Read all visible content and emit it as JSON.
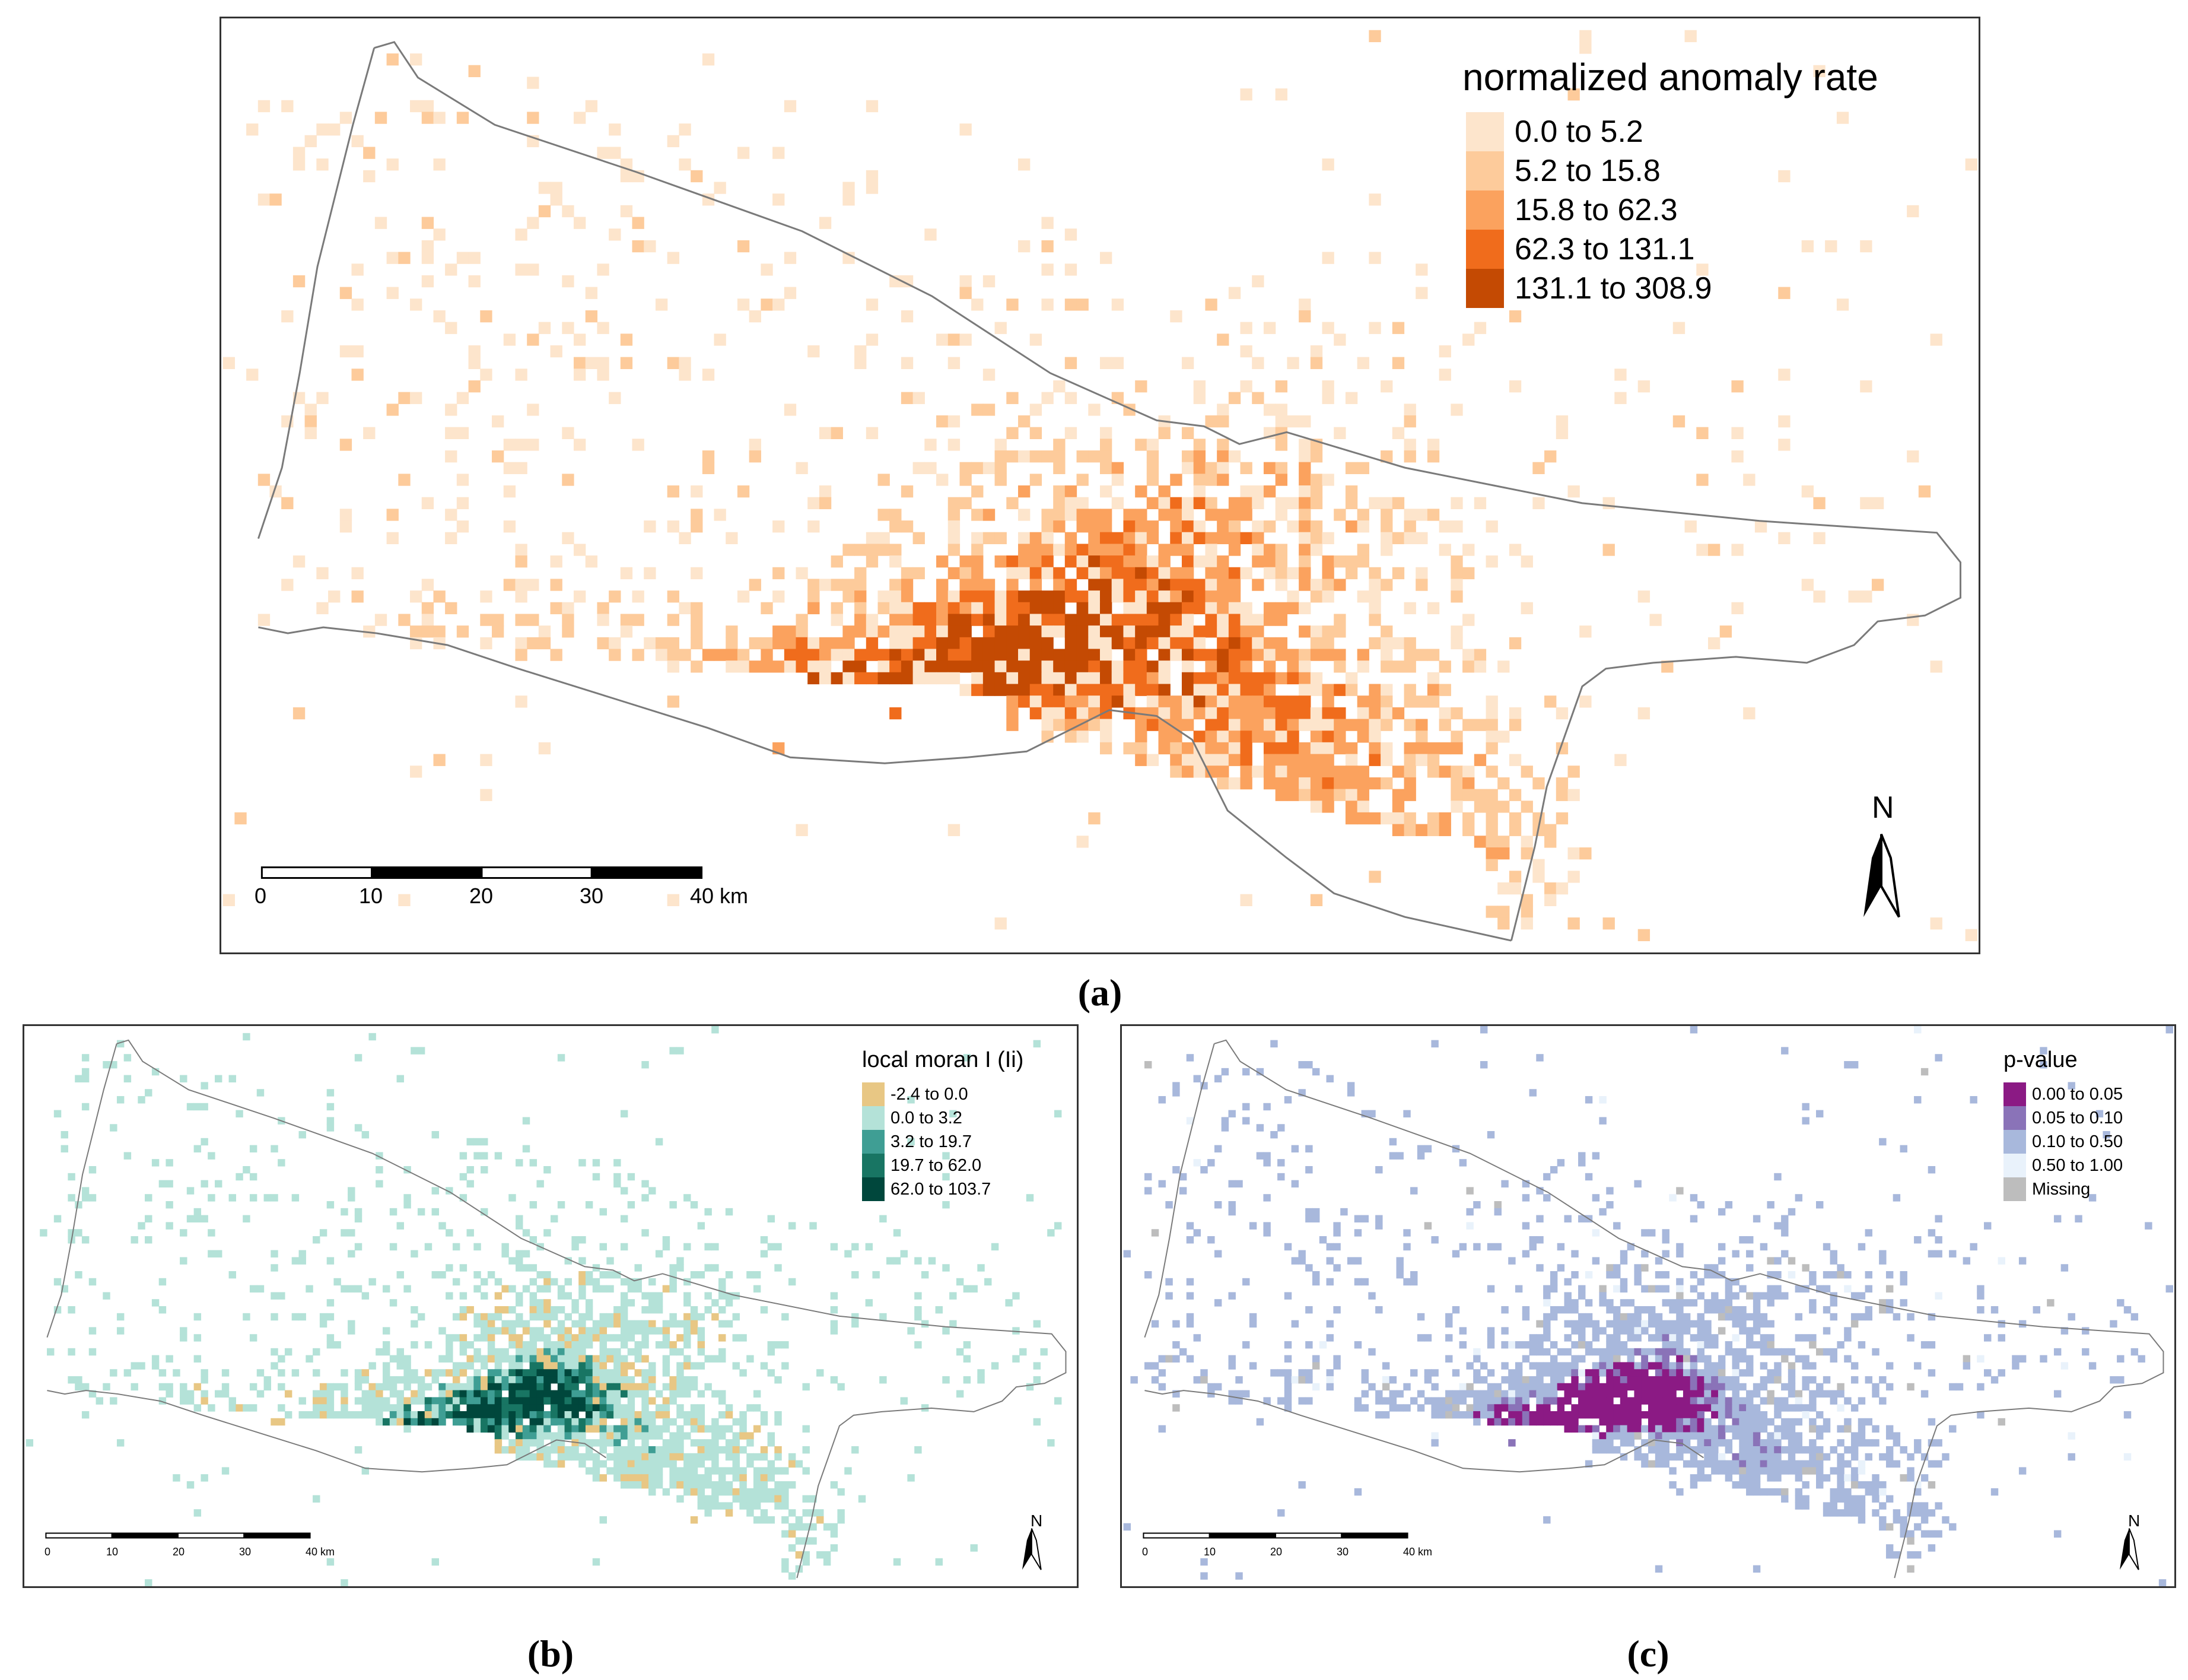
{
  "figure": {
    "panels": [
      {
        "id": "a",
        "caption": "(a)",
        "legend_title": "normalized anomaly rate",
        "legend": [
          {
            "label": "0.0 to 5.2",
            "color": "#fde5cc"
          },
          {
            "label": "5.2 to 15.8",
            "color": "#fdcb9b"
          },
          {
            "label": "15.8 to 62.3",
            "color": "#fba25e"
          },
          {
            "label": "62.3 to 131.1",
            "color": "#f06c1c"
          },
          {
            "label": "131.1 to 308.9",
            "color": "#c44a03"
          }
        ],
        "scale_ticks": [
          "0",
          "10",
          "20",
          "30",
          "40 km"
        ],
        "north_label": "N"
      },
      {
        "id": "b",
        "caption": "(b)",
        "legend_title": "local moran I (Ii)",
        "legend": [
          {
            "label": "-2.4 to 0.0",
            "color": "#e8c784"
          },
          {
            "label": "0.0 to 3.2",
            "color": "#b4e2d8"
          },
          {
            "label": "3.2 to 19.7",
            "color": "#3f9e94"
          },
          {
            "label": "19.7 to 62.0",
            "color": "#187563"
          },
          {
            "label": "62.0 to 103.7",
            "color": "#00473c"
          }
        ],
        "scale_ticks": [
          "0",
          "10",
          "20",
          "30",
          "40 km"
        ],
        "north_label": "N"
      },
      {
        "id": "c",
        "caption": "(c)",
        "legend_title": "p-value",
        "legend": [
          {
            "label": "0.00 to 0.05",
            "color": "#8b1a84"
          },
          {
            "label": "0.05 to 0.10",
            "color": "#8a73b8"
          },
          {
            "label": "0.10 to 0.50",
            "color": "#a8b8dc"
          },
          {
            "label": "0.50 to 1.00",
            "color": "#e9f2fb"
          },
          {
            "label": "Missing",
            "color": "#bdbdbd"
          }
        ],
        "scale_ticks": [
          "0",
          "10",
          "20",
          "30",
          "40 km"
        ],
        "north_label": "N"
      }
    ]
  }
}
